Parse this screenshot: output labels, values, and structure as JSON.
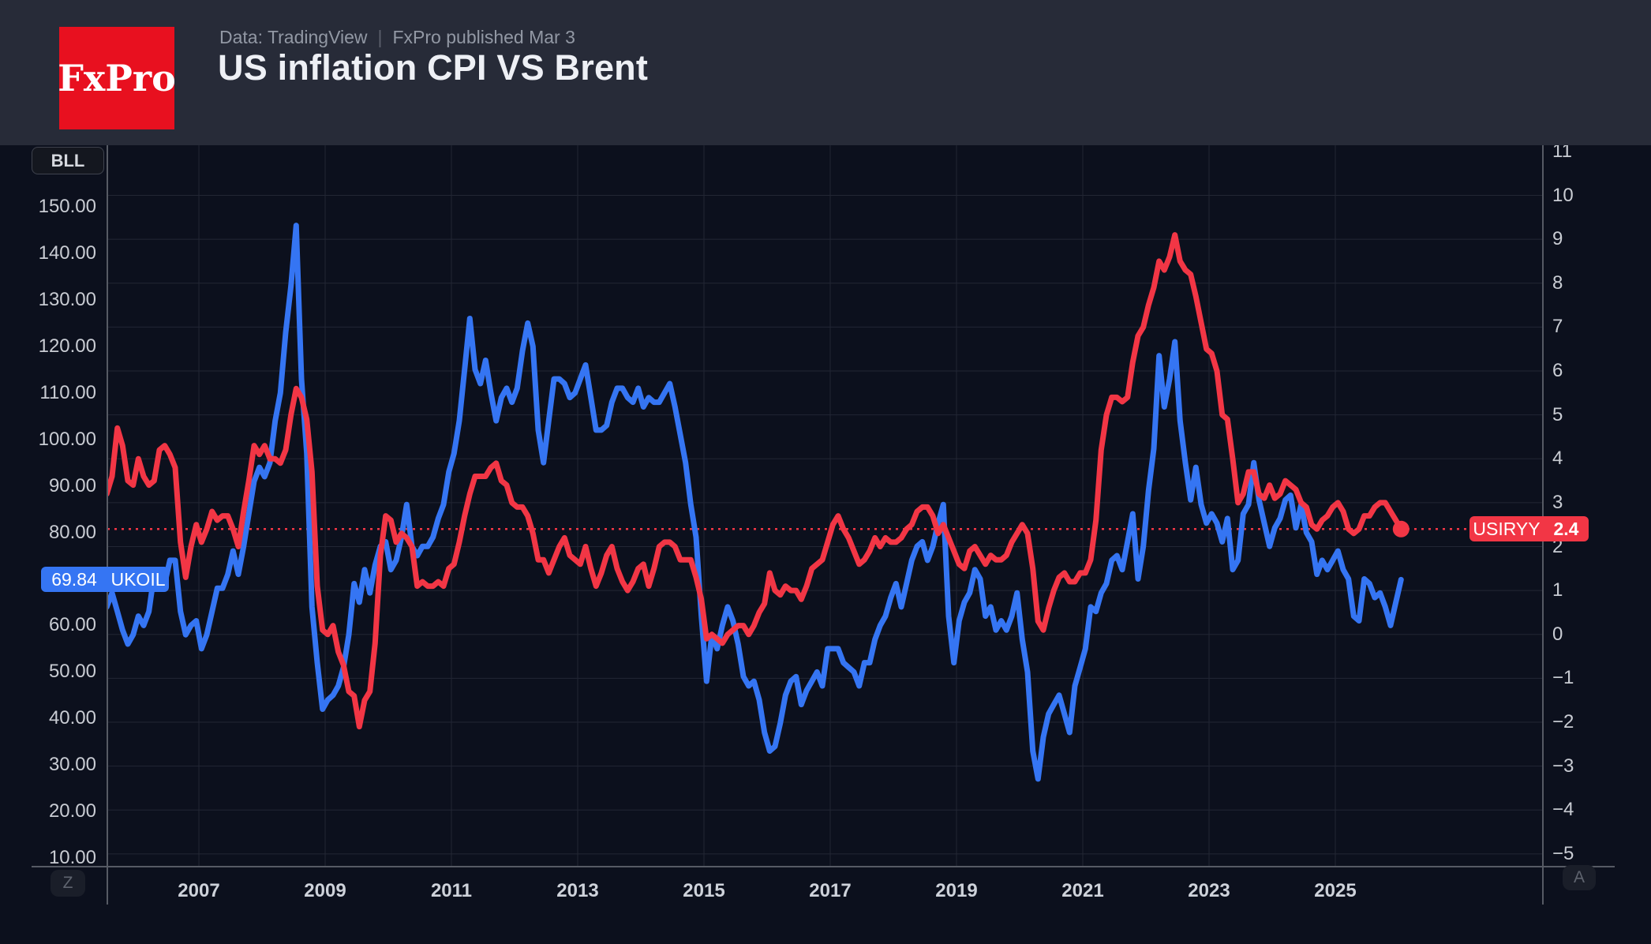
{
  "header": {
    "logo_text": "FxPro",
    "source": "Data: TradingView",
    "separator": "|",
    "published": "FxPro published Mar 3",
    "title": "US inflation CPI VS Brent"
  },
  "chart_ui": {
    "unit_badge": "BLL",
    "zoom_button": "Z",
    "auto_button": "A",
    "series_labels": {
      "brent": {
        "value": "69.84",
        "name": "UKOIL"
      },
      "inflation": {
        "name": "USIRYY",
        "value": "2.4"
      }
    },
    "left_axis_ticks": [
      {
        "label": "150.00",
        "value": 150
      },
      {
        "label": "140.00",
        "value": 140
      },
      {
        "label": "130.00",
        "value": 130
      },
      {
        "label": "120.00",
        "value": 120
      },
      {
        "label": "110.00",
        "value": 110
      },
      {
        "label": "100.00",
        "value": 100
      },
      {
        "label": "90.00",
        "value": 90
      },
      {
        "label": "80.00",
        "value": 80
      },
      {
        "label": "70.00",
        "value": 70,
        "hidden": true
      },
      {
        "label": "60.00",
        "value": 60
      },
      {
        "label": "50.00",
        "value": 50
      },
      {
        "label": "40.00",
        "value": 40
      },
      {
        "label": "30.00",
        "value": 30
      },
      {
        "label": "20.00",
        "value": 20
      },
      {
        "label": "10.00",
        "value": 10
      }
    ],
    "right_axis_ticks": [
      {
        "label": "11",
        "value": 11
      },
      {
        "label": "10",
        "value": 10
      },
      {
        "label": "9",
        "value": 9
      },
      {
        "label": "8",
        "value": 8
      },
      {
        "label": "7",
        "value": 7
      },
      {
        "label": "6",
        "value": 6
      },
      {
        "label": "5",
        "value": 5
      },
      {
        "label": "4",
        "value": 4
      },
      {
        "label": "3",
        "value": 3
      },
      {
        "label": "2",
        "value": 2
      },
      {
        "label": "1",
        "value": 1
      },
      {
        "label": "0",
        "value": 0
      },
      {
        "label": "−1",
        "value": -1
      },
      {
        "label": "−2",
        "value": -2
      },
      {
        "label": "−3",
        "value": -3
      },
      {
        "label": "−4",
        "value": -4
      },
      {
        "label": "−5",
        "value": -5
      }
    ],
    "x_axis_ticks": [
      {
        "label": "2007",
        "year": 2007
      },
      {
        "label": "2009",
        "year": 2009
      },
      {
        "label": "2011",
        "year": 2011
      },
      {
        "label": "2013",
        "year": 2013
      },
      {
        "label": "2015",
        "year": 2015
      },
      {
        "label": "2017",
        "year": 2017
      },
      {
        "label": "2019",
        "year": 2019
      },
      {
        "label": "2021",
        "year": 2021
      },
      {
        "label": "2023",
        "year": 2023
      },
      {
        "label": "2025",
        "year": 2025
      }
    ]
  },
  "colors": {
    "header_bg": "#272b38",
    "chart_bg": "#0c101d",
    "grid": "#222634",
    "axis_line": "#565a64",
    "tick_text": "#c9ccd3",
    "brent_blue": "#3575f3",
    "inflation_red": "#f23645",
    "logo_red": "#e8101f",
    "title_text": "#eef0f5",
    "subtitle_text": "#9298a4"
  },
  "chart_data": {
    "type": "line",
    "title": "US inflation CPI VS Brent",
    "x_start_year": 2005.5417,
    "x_step_years": 0.0833333,
    "x_label_years": [
      2007,
      2009,
      2011,
      2013,
      2015,
      2017,
      2019,
      2021,
      2023,
      2025
    ],
    "left_axis_ticks": [
      150,
      140,
      130,
      120,
      110,
      100,
      90,
      80,
      70,
      60,
      50,
      40,
      30,
      20,
      10
    ],
    "right_axis_ticks": [
      11,
      10,
      9,
      8,
      7,
      6,
      5,
      4,
      3,
      2,
      1,
      0,
      -1,
      -2,
      -3,
      -4,
      -5
    ],
    "grid": true,
    "dotted_level_right": 2.4,
    "last_values": {
      "UKOIL": 69.84,
      "USIRYY": 2.4
    },
    "series": [
      {
        "name": "UKOIL",
        "label": "Brent crude oil (UKOIL), USD/BLL, left scale",
        "axis": "left",
        "color": "#3575f3",
        "values": [
          64,
          67,
          63,
          59,
          56,
          58,
          62,
          60,
          63,
          71,
          70,
          69,
          74,
          74,
          63,
          58,
          60,
          61,
          55,
          58,
          63,
          68,
          68,
          71,
          76,
          71,
          77,
          84,
          91,
          94,
          92,
          95,
          104,
          110,
          123,
          133,
          146,
          113,
          97,
          64,
          52,
          42,
          44,
          45,
          47,
          51,
          58,
          69,
          65,
          72,
          67,
          73,
          77,
          78,
          72,
          74,
          79,
          86,
          77,
          75,
          77,
          77,
          79,
          83,
          86,
          93,
          97,
          104,
          115,
          126,
          115,
          112,
          117,
          110,
          104,
          109,
          111,
          108,
          111,
          119,
          125,
          120,
          102,
          95,
          104,
          113,
          113,
          112,
          109,
          110,
          113,
          116,
          109,
          102,
          102,
          103,
          108,
          111,
          111,
          109,
          108,
          111,
          107,
          109,
          108,
          108,
          110,
          112,
          107,
          101,
          95,
          86,
          79,
          62,
          48,
          58,
          55,
          60,
          64,
          61,
          56,
          49,
          47,
          48,
          44,
          37,
          33,
          34,
          39,
          45,
          48,
          49,
          43,
          46,
          48,
          50,
          47,
          55,
          55,
          55,
          52,
          51,
          50,
          47,
          52,
          52,
          57,
          60,
          62,
          66,
          69,
          64,
          69,
          74,
          77,
          78,
          74,
          77,
          82,
          86,
          62,
          52,
          61,
          65,
          67,
          72,
          70,
          62,
          64,
          59,
          61,
          59,
          62,
          67,
          57,
          50,
          33,
          27,
          36,
          41,
          43,
          45,
          41,
          37,
          47,
          51,
          55,
          64,
          63,
          67,
          69,
          74,
          75,
          72,
          78,
          84,
          70,
          77,
          89,
          98,
          118,
          107,
          113,
          121,
          104,
          95,
          87,
          94,
          86,
          82,
          84,
          82,
          78,
          83,
          72,
          74,
          84,
          86,
          95,
          87,
          82,
          77,
          81,
          83,
          87,
          88,
          81,
          86,
          80,
          78,
          71,
          74,
          72,
          74,
          76,
          72,
          70,
          62,
          61,
          70,
          69,
          66,
          67,
          64,
          60,
          65,
          69.84
        ]
      },
      {
        "name": "USIRYY",
        "label": "US inflation CPI YoY % (USIRYY), right scale",
        "axis": "right",
        "color": "#f23645",
        "values": [
          3.2,
          3.6,
          4.7,
          4.3,
          3.5,
          3.4,
          4.0,
          3.6,
          3.4,
          3.5,
          4.2,
          4.3,
          4.1,
          3.8,
          2.1,
          1.3,
          2.0,
          2.5,
          2.1,
          2.4,
          2.8,
          2.6,
          2.7,
          2.7,
          2.4,
          2.0,
          2.8,
          3.5,
          4.3,
          4.1,
          4.3,
          4.0,
          4.0,
          3.9,
          4.2,
          5.0,
          5.6,
          5.4,
          4.9,
          3.7,
          1.1,
          0.1,
          0.0,
          0.2,
          -0.4,
          -0.7,
          -1.3,
          -1.4,
          -2.1,
          -1.5,
          -1.3,
          -0.2,
          1.8,
          2.7,
          2.6,
          2.1,
          2.3,
          2.2,
          2.0,
          1.1,
          1.2,
          1.1,
          1.1,
          1.2,
          1.1,
          1.5,
          1.6,
          2.1,
          2.7,
          3.2,
          3.6,
          3.6,
          3.6,
          3.8,
          3.9,
          3.5,
          3.4,
          3.0,
          2.9,
          2.9,
          2.7,
          2.3,
          1.7,
          1.7,
          1.4,
          1.7,
          2.0,
          2.2,
          1.8,
          1.7,
          1.6,
          2.0,
          1.5,
          1.1,
          1.4,
          1.8,
          2.0,
          1.5,
          1.2,
          1.0,
          1.2,
          1.5,
          1.6,
          1.1,
          1.5,
          2.0,
          2.1,
          2.1,
          2.0,
          1.7,
          1.7,
          1.7,
          1.3,
          0.8,
          -0.1,
          0.0,
          -0.1,
          -0.2,
          0.0,
          0.1,
          0.2,
          0.2,
          0.0,
          0.2,
          0.5,
          0.7,
          1.4,
          1.0,
          0.9,
          1.1,
          1.0,
          1.0,
          0.8,
          1.1,
          1.5,
          1.6,
          1.7,
          2.1,
          2.5,
          2.7,
          2.4,
          2.2,
          1.9,
          1.6,
          1.7,
          1.9,
          2.2,
          2.0,
          2.2,
          2.1,
          2.1,
          2.2,
          2.4,
          2.5,
          2.8,
          2.9,
          2.9,
          2.7,
          2.3,
          2.5,
          2.2,
          1.9,
          1.6,
          1.5,
          1.9,
          2.0,
          1.8,
          1.6,
          1.8,
          1.7,
          1.7,
          1.8,
          2.1,
          2.3,
          2.5,
          2.3,
          1.5,
          0.3,
          0.1,
          0.6,
          1.0,
          1.3,
          1.4,
          1.2,
          1.2,
          1.4,
          1.4,
          1.7,
          2.6,
          4.2,
          5.0,
          5.4,
          5.4,
          5.3,
          5.4,
          6.2,
          6.8,
          7.0,
          7.5,
          7.9,
          8.5,
          8.3,
          8.6,
          9.1,
          8.5,
          8.3,
          8.2,
          7.7,
          7.1,
          6.5,
          6.4,
          6.0,
          5.0,
          4.9,
          4.0,
          3.0,
          3.2,
          3.7,
          3.7,
          3.2,
          3.1,
          3.4,
          3.1,
          3.2,
          3.5,
          3.4,
          3.3,
          3.0,
          2.9,
          2.5,
          2.4,
          2.6,
          2.7,
          2.9,
          3.0,
          2.8,
          2.4,
          2.3,
          2.4,
          2.7,
          2.7,
          2.9,
          3.0,
          3.0,
          2.8,
          2.6,
          2.4
        ]
      }
    ]
  }
}
